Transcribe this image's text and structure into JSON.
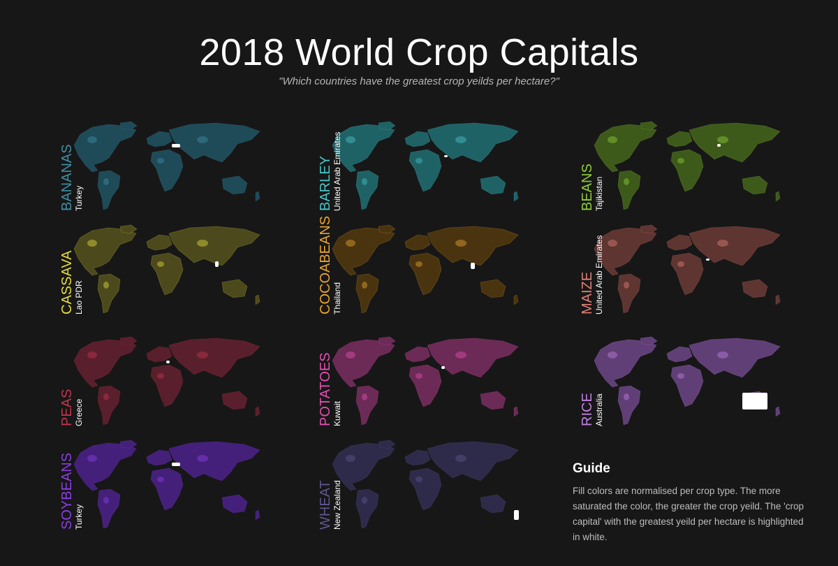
{
  "header": {
    "title": "2018 World Crop Capitals",
    "subtitle": "\"Which countries have the greatest crop yeilds per hectare?\""
  },
  "panels": [
    {
      "crop": "BANANAS",
      "capital": "Turkey",
      "color": "#3f8fa6",
      "fill": "#1f4a58",
      "highlight": "Turkey"
    },
    {
      "crop": "BARLEY",
      "capital": "United Arab Emirates",
      "color": "#48c4c6",
      "fill": "#1f6266",
      "highlight": "United Arab Emirates"
    },
    {
      "crop": "BEANS",
      "capital": "Tajikistan",
      "color": "#8fcf38",
      "fill": "#3d5a1a",
      "highlight": "Tajikistan"
    },
    {
      "crop": "CASSAVA",
      "capital": "Lao PDR",
      "color": "#e5dc3c",
      "fill": "#4c4a1c",
      "highlight": "Lao PDR"
    },
    {
      "crop": "COCOABEANS",
      "capital": "Thailand",
      "color": "#e8a32c",
      "fill": "#4a3410",
      "highlight": "Thailand"
    },
    {
      "crop": "MAIZE",
      "capital": "United Arab Emirates",
      "color": "#e27f75",
      "fill": "#5e3530",
      "highlight": "United Arab Emirates"
    },
    {
      "crop": "PEAS",
      "capital": "Greece",
      "color": "#c2354f",
      "fill": "#5a1f2c",
      "highlight": "Greece"
    },
    {
      "crop": "POTATOES",
      "capital": "Kuwait",
      "color": "#e24fb0",
      "fill": "#6c2a56",
      "highlight": "Kuwait"
    },
    {
      "crop": "RICE",
      "capital": "Australia",
      "color": "#c27ee2",
      "fill": "#603f76",
      "highlight": "Australia"
    },
    {
      "crop": "SOYBEANS",
      "capital": "Turkey",
      "color": "#8a3de6",
      "fill": "#44207a",
      "highlight": "Turkey"
    },
    {
      "crop": "WHEAT",
      "capital": "New Zealand",
      "color": "#5e568f",
      "fill": "#2e2b4a",
      "highlight": "New Zealand"
    }
  ],
  "guide": {
    "heading": "Guide",
    "text": "Fill colors are normalised per crop type. The more saturated the color, the greater the crop yeild. The 'crop capital' with the greatest yeild per hectare is highlighted in white."
  }
}
